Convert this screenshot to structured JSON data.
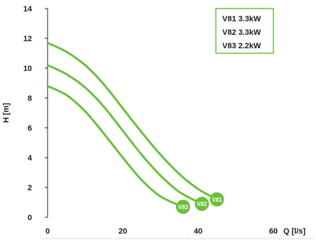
{
  "chart_data": {
    "type": "line",
    "xlabel": "Q [l/s]",
    "ylabel": "H [m]",
    "xlim": [
      0,
      60
    ],
    "ylim": [
      0,
      14
    ],
    "xticks": [
      0,
      20,
      40,
      60
    ],
    "yticks": [
      0,
      2,
      4,
      6,
      8,
      10,
      12,
      14
    ],
    "grid": false,
    "legend_position": "top-right",
    "legend": [
      "V81 3.3kW",
      "V82 3.3kW",
      "V83 2.2kW"
    ],
    "series_color": "#6cbf3a",
    "series": [
      {
        "name": "V81",
        "x": [
          0,
          5,
          10,
          15,
          20,
          25,
          30,
          35,
          40,
          45
        ],
        "y": [
          11.7,
          11.1,
          10.2,
          8.9,
          7.3,
          5.7,
          4.2,
          2.9,
          1.9,
          1.2
        ]
      },
      {
        "name": "V82",
        "x": [
          0,
          5,
          10,
          15,
          20,
          25,
          30,
          35,
          41
        ],
        "y": [
          10.2,
          9.6,
          8.7,
          7.4,
          5.8,
          4.2,
          2.8,
          1.7,
          0.9
        ]
      },
      {
        "name": "V83",
        "x": [
          0,
          5,
          10,
          15,
          20,
          25,
          30,
          36
        ],
        "y": [
          8.8,
          8.2,
          7.1,
          5.6,
          4.0,
          2.5,
          1.4,
          0.7
        ]
      }
    ]
  }
}
